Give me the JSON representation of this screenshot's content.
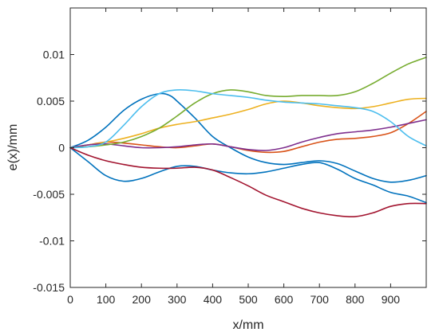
{
  "chart_data": {
    "type": "line",
    "title": "",
    "xlabel": "x/mm",
    "ylabel": "e(x)/mm",
    "xlim": [
      0,
      1000
    ],
    "ylim": [
      -0.015,
      0.015
    ],
    "xticks": [
      0,
      100,
      200,
      300,
      400,
      500,
      600,
      700,
      800,
      900
    ],
    "xtick_labels": [
      "0",
      "100",
      "200",
      "300",
      "400",
      "500",
      "600",
      "700",
      "800",
      "900"
    ],
    "yticks": [
      -0.015,
      -0.01,
      -0.005,
      0,
      0.005,
      0.01
    ],
    "ytick_labels": [
      "-0.015",
      "-0.01",
      "-0.005",
      "0",
      "0.005",
      "0.01"
    ],
    "grid": false,
    "series": [
      {
        "color": "#0072BD",
        "x": [
          0,
          50,
          100,
          150,
          200,
          250,
          280,
          300,
          350,
          400,
          450,
          500,
          550,
          600,
          650,
          700,
          750,
          800,
          850,
          900,
          950,
          1000
        ],
        "y": [
          0,
          0.0008,
          0.0022,
          0.004,
          0.0052,
          0.0058,
          0.0056,
          0.005,
          0.0032,
          0.0012,
          0.0,
          -0.001,
          -0.0016,
          -0.0018,
          -0.0016,
          -0.0014,
          -0.0017,
          -0.0025,
          -0.0033,
          -0.0037,
          -0.0035,
          -0.003
        ]
      },
      {
        "color": "#D95319",
        "x": [
          0,
          50,
          100,
          150,
          200,
          250,
          300,
          350,
          400,
          450,
          500,
          550,
          600,
          650,
          700,
          750,
          800,
          850,
          900,
          950,
          1000
        ],
        "y": [
          0,
          0.0003,
          0.0006,
          0.0005,
          0.0003,
          0.0001,
          0.0,
          0.0002,
          0.0004,
          0.0001,
          -0.0003,
          -0.0005,
          -0.0004,
          0.0001,
          0.0006,
          0.0009,
          0.001,
          0.0012,
          0.0016,
          0.0026,
          0.0039
        ]
      },
      {
        "color": "#EDB120",
        "x": [
          0,
          50,
          100,
          150,
          200,
          250,
          300,
          350,
          400,
          450,
          500,
          550,
          600,
          650,
          700,
          750,
          800,
          850,
          900,
          950,
          1000
        ],
        "y": [
          0,
          0.0003,
          0.0006,
          0.001,
          0.0015,
          0.0021,
          0.0025,
          0.0028,
          0.0032,
          0.0036,
          0.0041,
          0.0047,
          0.005,
          0.0048,
          0.0045,
          0.0043,
          0.0042,
          0.0044,
          0.0048,
          0.0052,
          0.0053
        ]
      },
      {
        "color": "#7E2F8E",
        "x": [
          0,
          50,
          100,
          150,
          200,
          250,
          300,
          350,
          400,
          450,
          500,
          550,
          600,
          650,
          700,
          750,
          800,
          850,
          900,
          950,
          1000
        ],
        "y": [
          0,
          0.0003,
          0.0004,
          0.0002,
          0.0,
          0.0,
          0.0001,
          0.0003,
          0.0004,
          0.0001,
          -0.0002,
          -0.0003,
          0.0,
          0.0006,
          0.0011,
          0.0015,
          0.0017,
          0.0019,
          0.0022,
          0.0026,
          0.003
        ]
      },
      {
        "color": "#77AC30",
        "x": [
          0,
          50,
          100,
          150,
          200,
          250,
          300,
          350,
          400,
          450,
          500,
          550,
          600,
          650,
          700,
          750,
          800,
          850,
          900,
          950,
          1000
        ],
        "y": [
          0,
          0.0001,
          0.0003,
          0.0006,
          0.0012,
          0.0021,
          0.0034,
          0.0048,
          0.0058,
          0.0062,
          0.006,
          0.0056,
          0.0055,
          0.0056,
          0.0056,
          0.0056,
          0.006,
          0.0069,
          0.008,
          0.009,
          0.0097
        ]
      },
      {
        "color": "#4DBEEE",
        "x": [
          0,
          50,
          100,
          150,
          200,
          250,
          300,
          350,
          400,
          450,
          500,
          550,
          600,
          650,
          700,
          750,
          800,
          850,
          900,
          950,
          1000
        ],
        "y": [
          0,
          0.0001,
          0.0006,
          0.0024,
          0.0044,
          0.0058,
          0.0062,
          0.0061,
          0.0058,
          0.0056,
          0.0054,
          0.0051,
          0.0049,
          0.0048,
          0.0047,
          0.0045,
          0.0043,
          0.0039,
          0.0028,
          0.0012,
          0.0002
        ]
      },
      {
        "color": "#0072BD",
        "x": [
          0,
          50,
          100,
          150,
          200,
          250,
          300,
          350,
          400,
          450,
          500,
          550,
          600,
          650,
          700,
          750,
          800,
          850,
          900,
          950,
          1000
        ],
        "y": [
          0,
          -0.0015,
          -0.003,
          -0.0036,
          -0.0033,
          -0.0026,
          -0.002,
          -0.002,
          -0.0024,
          -0.0027,
          -0.0028,
          -0.0026,
          -0.0022,
          -0.0018,
          -0.0016,
          -0.0023,
          -0.0033,
          -0.004,
          -0.0048,
          -0.0052,
          -0.0059
        ]
      },
      {
        "color": "#A2142F",
        "x": [
          0,
          50,
          100,
          150,
          200,
          250,
          300,
          350,
          400,
          450,
          500,
          550,
          600,
          650,
          700,
          750,
          800,
          850,
          900,
          950,
          1000
        ],
        "y": [
          0,
          -0.0008,
          -0.0014,
          -0.0018,
          -0.0021,
          -0.0022,
          -0.0022,
          -0.0021,
          -0.0024,
          -0.0032,
          -0.0041,
          -0.0051,
          -0.0058,
          -0.0065,
          -0.007,
          -0.0073,
          -0.0074,
          -0.007,
          -0.0063,
          -0.006,
          -0.006
        ]
      }
    ]
  }
}
